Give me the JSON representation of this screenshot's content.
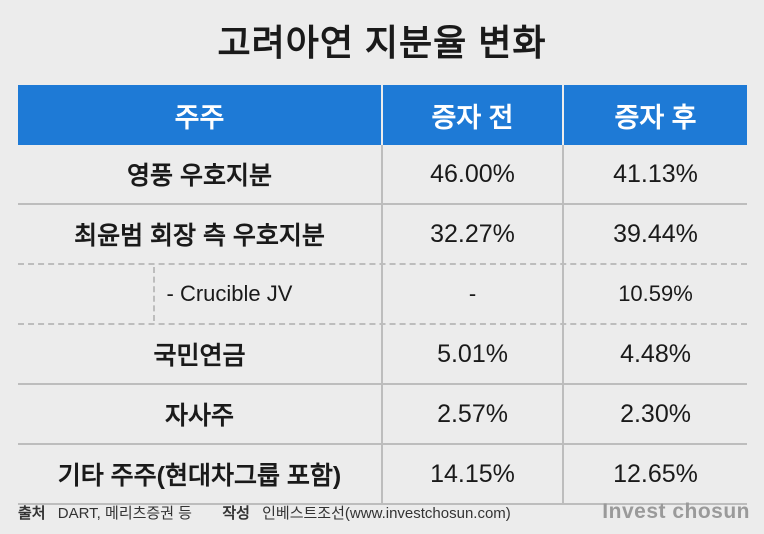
{
  "title": "고려아연 지분율 변화",
  "table": {
    "headers": [
      "주주",
      "증자 전",
      "증자 후"
    ],
    "rows": [
      {
        "holder": "영풍 우호지분",
        "before": "46.00%",
        "after": "41.13%"
      },
      {
        "holder": "최윤범 회장 측 우호지분",
        "before": "32.27%",
        "after": "39.44%"
      },
      {
        "holder": "- Crucible JV",
        "before": "-",
        "after": "10.59%"
      },
      {
        "holder": "국민연금",
        "before": "5.01%",
        "after": "4.48%"
      },
      {
        "holder": "자사주",
        "before": "2.57%",
        "after": "2.30%"
      },
      {
        "holder": "기타 주주(현대차그룹 포함)",
        "before": "14.15%",
        "after": "12.65%"
      }
    ]
  },
  "footer": {
    "source_label": "출처",
    "source_value": "DART, 메리츠증권 등",
    "author_label": "작성",
    "author_value": "인베스트조선(www.investchosun.com)"
  },
  "brand": "Invest chosun"
}
